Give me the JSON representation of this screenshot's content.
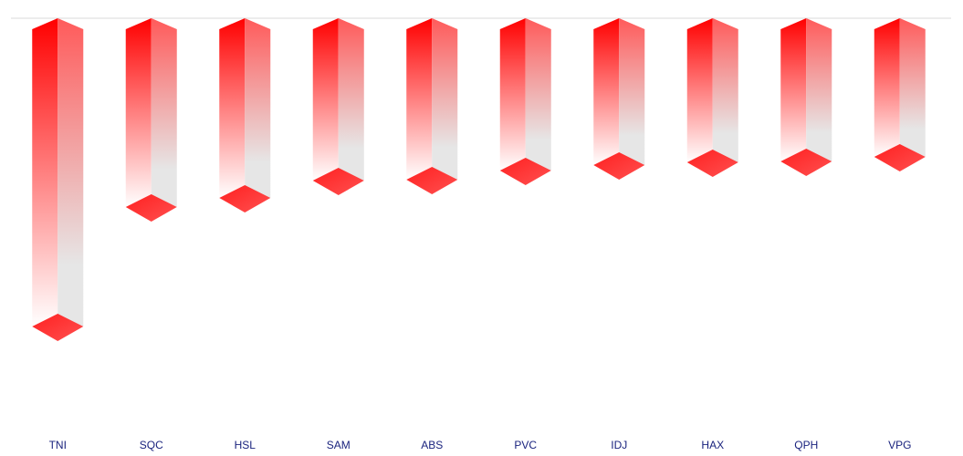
{
  "chart_data": {
    "type": "bar3d",
    "categories": [
      "TNI",
      "SQC",
      "HSL",
      "SAM",
      "ABS",
      "PVC",
      "IDJ",
      "HAX",
      "QPH",
      "VPG"
    ],
    "values": [
      -338,
      -207,
      -197,
      -178,
      -177,
      -167,
      -161,
      -158,
      -157,
      -152
    ],
    "color": "#ff0000",
    "ylim": [
      -460,
      0
    ]
  }
}
